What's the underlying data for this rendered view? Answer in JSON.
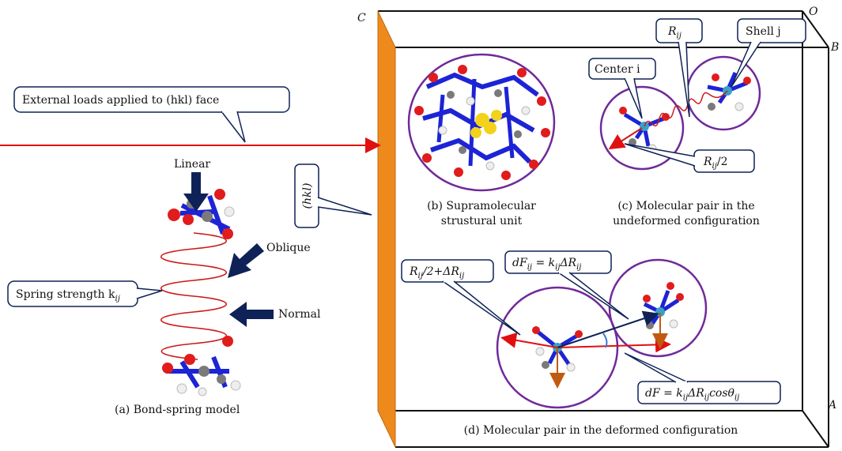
{
  "corners": {
    "c": "C",
    "o": "O",
    "b": "B",
    "a": "A"
  },
  "callouts": {
    "external_loads": "External loads applied to (hkl) face",
    "hkl": "(hkl)",
    "spring_strength": "Spring strength k",
    "spring_strength_sub": "ij",
    "center_i": "Center i",
    "r_ij": "R",
    "r_ij_sub": "ij",
    "shell_j": "Shell j",
    "r_ij_half": "R",
    "r_ij_half_sub": "ij",
    "r_ij_half_tail": "/2",
    "r_plus_dr": "R",
    "r_plus_dr_sub": "ij",
    "r_plus_dr_mid": "/2+ΔR",
    "r_plus_dr_sub2": "ij",
    "df_ij_lhs": "dF",
    "df_ij_lhs_sub": "ij",
    "df_ij_rhs": " = k",
    "df_ij_rhs_sub": "ij",
    "df_ij_tail": "ΔR",
    "df_ij_tail_sub": "ij",
    "df_lhs": "dF = k",
    "df_sub1": "ij",
    "df_mid": "ΔR",
    "df_sub2": "ij",
    "df_cos": "cosθ",
    "df_sub3": "ij"
  },
  "force_labels": {
    "linear": "Linear",
    "oblique": "Oblique",
    "normal": "Normal"
  },
  "captions": {
    "a": "(a) Bond-spring model",
    "b_line1": "(b) Supramolecular",
    "b_line2": "strustural unit",
    "c_line1": "(c) Molecular pair in the",
    "c_line2": "undeformed configuration",
    "d": "(d) Molecular pair in the deformed configuration"
  },
  "colors": {
    "face": "#ee8a1c",
    "spring": "#cc1a1a",
    "arrow_navy": "#0f2257",
    "shell": "#6f2a9a",
    "load_line": "#e01010",
    "orange_arrow": "#c05a10"
  }
}
